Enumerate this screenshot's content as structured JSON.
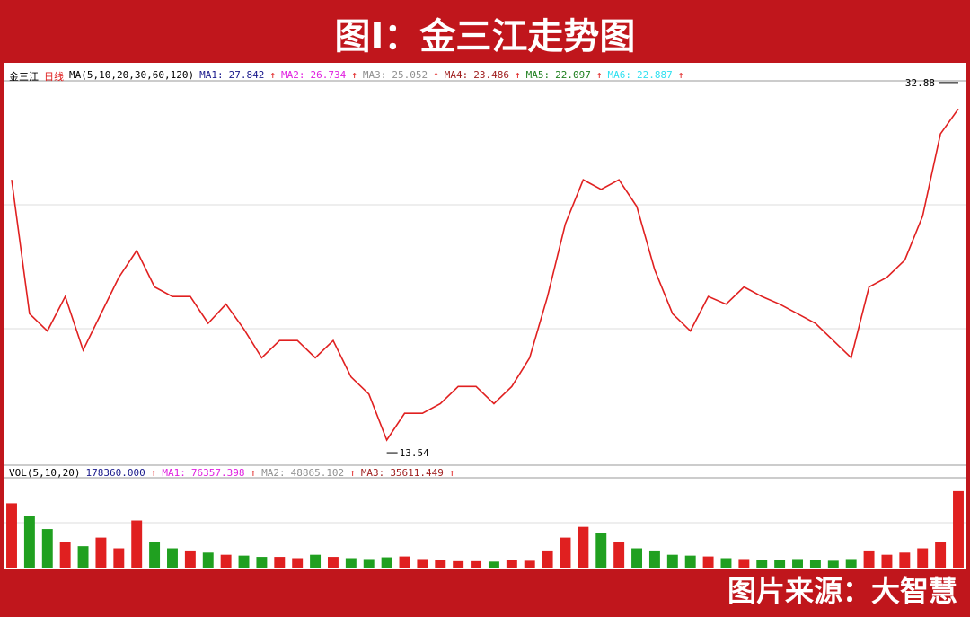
{
  "header": {
    "title": "图I：金三江走势图"
  },
  "footer": {
    "source": "图片来源：大智慧"
  },
  "chart_data": {
    "type": "stock",
    "stock_name": "金三江",
    "period": "日线",
    "ma_label": "MA(5,10,20,30,60,120)",
    "arrow": "↑",
    "ma_legend": [
      {
        "name": "MA1:",
        "value": 27.842,
        "color": "#1a1a8c"
      },
      {
        "name": "MA2:",
        "value": 26.734,
        "color": "#e020e0"
      },
      {
        "name": "MA3:",
        "value": 25.052,
        "color": "#909090"
      },
      {
        "name": "MA4:",
        "value": 23.486,
        "color": "#a02020"
      },
      {
        "name": "MA5:",
        "value": 22.097,
        "color": "#208020"
      },
      {
        "name": "MA6:",
        "value": 22.887,
        "color": "#30e0f0"
      }
    ],
    "high_label": 32.88,
    "low_label": 13.54,
    "ylim": [
      12.98,
      32.97
    ],
    "series": [
      {
        "name": "收盘",
        "color": "#e02020",
        "values": [
          27.8,
          20.8,
          19.9,
          21.7,
          18.9,
          20.8,
          22.7,
          24.1,
          22.2,
          21.7,
          21.7,
          20.3,
          21.3,
          20.0,
          18.5,
          19.4,
          19.4,
          18.5,
          19.4,
          17.5,
          16.6,
          14.2,
          15.6,
          15.6,
          16.1,
          17.0,
          17.0,
          16.1,
          17.0,
          18.5,
          21.7,
          25.5,
          27.8,
          27.3,
          27.8,
          26.4,
          23.1,
          20.8,
          19.9,
          21.7,
          21.3,
          22.2,
          21.7,
          21.3,
          20.8,
          20.3,
          19.4,
          18.5,
          22.2,
          22.7,
          23.6,
          25.9,
          30.2,
          31.5
        ]
      }
    ],
    "up_color": "#e02020",
    "down_color": "#20a020",
    "volume": {
      "label": "VOL(5,10,20)",
      "current": {
        "value": 178360,
        "label": "178360.000"
      },
      "ma_legend": [
        {
          "name": "MA1:",
          "value": 76357.398,
          "color": "#e020e0"
        },
        {
          "name": "MA2:",
          "value": 48865.102,
          "color": "#909090"
        },
        {
          "name": "MA3:",
          "value": 35611.449,
          "color": "#a02020"
        }
      ],
      "ylim": [
        0,
        197000
      ],
      "values": [
        150000,
        120000,
        90000,
        60000,
        50000,
        70000,
        45000,
        110000,
        60000,
        45000,
        40000,
        35000,
        30000,
        28000,
        25000,
        25000,
        22000,
        30000,
        25000,
        22000,
        20000,
        24000,
        26000,
        20000,
        18000,
        15000,
        15000,
        14000,
        18000,
        16000,
        40000,
        70000,
        95000,
        80000,
        60000,
        45000,
        40000,
        30000,
        28000,
        26000,
        22000,
        20000,
        18000,
        18000,
        20000,
        17000,
        16000,
        20000,
        40000,
        30000,
        35000,
        45000,
        60000,
        178360
      ]
    }
  }
}
